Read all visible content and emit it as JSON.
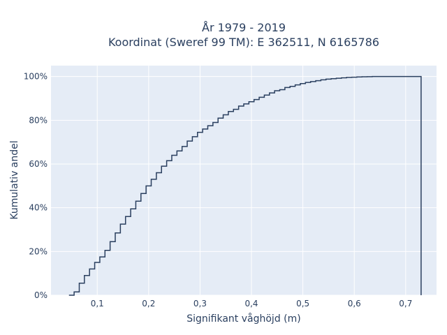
{
  "chart_data": {
    "type": "line",
    "line_shape": "step",
    "title_line1": "År 1979 - 2019",
    "title_line2": "Koordinat (Sweref 99 TM): E 362511, N 6165786",
    "xlabel": "Signifikant våghöjd (m)",
    "ylabel": "Kumulativ andel",
    "xlim": [
      0.01,
      0.76
    ],
    "ylim": [
      0,
      1.05
    ],
    "x_ticks": [
      0.1,
      0.2,
      0.3,
      0.4,
      0.5,
      0.6,
      0.7
    ],
    "x_tick_labels": [
      "0,1",
      "0,2",
      "0,3",
      "0,4",
      "0,5",
      "0,6",
      "0,7"
    ],
    "y_ticks": [
      0,
      0.2,
      0.4,
      0.6,
      0.8,
      1.0
    ],
    "y_tick_labels": [
      "0%",
      "20%",
      "40%",
      "60%",
      "80%",
      "100%"
    ],
    "grid": true,
    "legend": false,
    "colors": {
      "line": "#2a3f5f",
      "plot_bg": "#e5ecf6",
      "grid": "#ffffff"
    },
    "series": [
      {
        "x": [
          0.045,
          0.055,
          0.065,
          0.075,
          0.085,
          0.095,
          0.105,
          0.115,
          0.125,
          0.135,
          0.145,
          0.155,
          0.165,
          0.175,
          0.185,
          0.195,
          0.205,
          0.215,
          0.225,
          0.235,
          0.245,
          0.255,
          0.265,
          0.275,
          0.285,
          0.295,
          0.305,
          0.315,
          0.325,
          0.335,
          0.345,
          0.355,
          0.365,
          0.375,
          0.385,
          0.395,
          0.405,
          0.415,
          0.425,
          0.435,
          0.445,
          0.455,
          0.465,
          0.475,
          0.485,
          0.495,
          0.505,
          0.515,
          0.525,
          0.535,
          0.545,
          0.555,
          0.565,
          0.575,
          0.585,
          0.595,
          0.605,
          0.615,
          0.625,
          0.635,
          0.645,
          0.655,
          0.665,
          0.675,
          0.685,
          0.695,
          0.705,
          0.715,
          0.73,
          0.73
        ],
        "y": [
          0.0,
          0.015,
          0.055,
          0.09,
          0.12,
          0.15,
          0.175,
          0.205,
          0.245,
          0.285,
          0.325,
          0.36,
          0.395,
          0.43,
          0.465,
          0.5,
          0.53,
          0.56,
          0.59,
          0.615,
          0.64,
          0.66,
          0.68,
          0.705,
          0.725,
          0.745,
          0.76,
          0.775,
          0.79,
          0.81,
          0.825,
          0.84,
          0.85,
          0.865,
          0.875,
          0.885,
          0.895,
          0.905,
          0.915,
          0.925,
          0.935,
          0.94,
          0.95,
          0.955,
          0.962,
          0.968,
          0.973,
          0.977,
          0.981,
          0.985,
          0.988,
          0.99,
          0.992,
          0.994,
          0.996,
          0.997,
          0.998,
          0.999,
          0.9995,
          1.0,
          1.0,
          1.0,
          1.0,
          1.0,
          1.0,
          1.0,
          1.0,
          1.0,
          1.0,
          0.0
        ]
      }
    ]
  }
}
